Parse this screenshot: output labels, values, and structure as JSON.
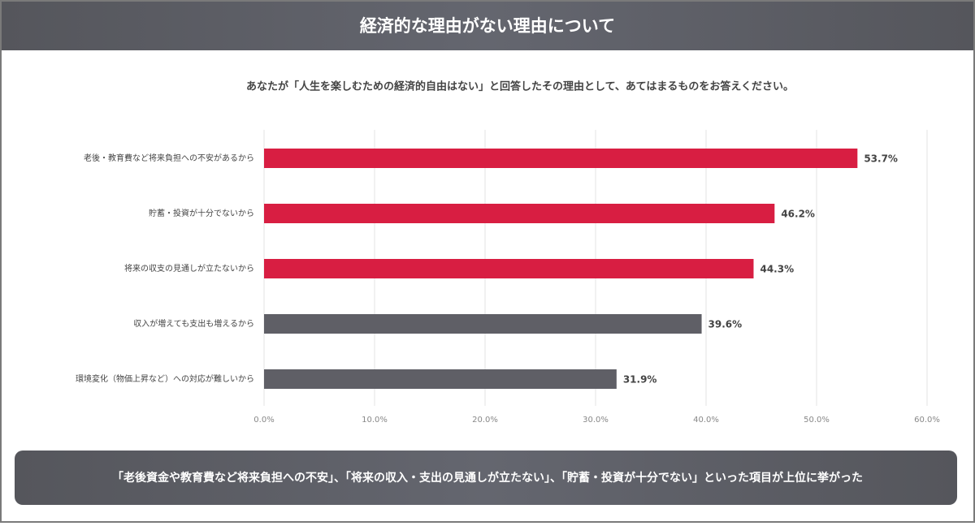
{
  "chart_data": {
    "type": "hbar",
    "title": "経済的な理由がない理由について",
    "subtitle": "あなたが「人生を楽しむための経済的自由はない」と回答したその理由として、あてはまるものをお答えください。",
    "categories": [
      "老後・教育費など将来負担への不安があるから",
      "貯蓄・投資が十分でないから",
      "将来の収支の見通しが立たないから",
      "収入が増えても支出も増えるから",
      "環境変化（物価上昇など）への対応が難しいから"
    ],
    "values": [
      53.7,
      46.2,
      44.3,
      39.6,
      31.9
    ],
    "value_labels": [
      "53.7%",
      "46.2%",
      "44.3%",
      "39.6%",
      "31.9%"
    ],
    "colors": [
      "#d81e42",
      "#d81e42",
      "#d81e42",
      "#5f5f66",
      "#5f5f66"
    ],
    "xlim": [
      0,
      60
    ],
    "xticks": [
      {
        "value": 0,
        "label": "0.0%"
      },
      {
        "value": 10,
        "label": "10.0%"
      },
      {
        "value": 20,
        "label": "20.0%"
      },
      {
        "value": 30,
        "label": "30.0%"
      },
      {
        "value": 40,
        "label": "40.0%"
      },
      {
        "value": 50,
        "label": "50.0%"
      },
      {
        "value": 60,
        "label": "60.0%"
      }
    ],
    "grid": true,
    "annotation": "「老後資金や教育費など将来負担への不安」、「将来の収入・支出の見通しが立たない」、「貯蓄・投資が十分でない」といった項目が上位に挙がった"
  }
}
